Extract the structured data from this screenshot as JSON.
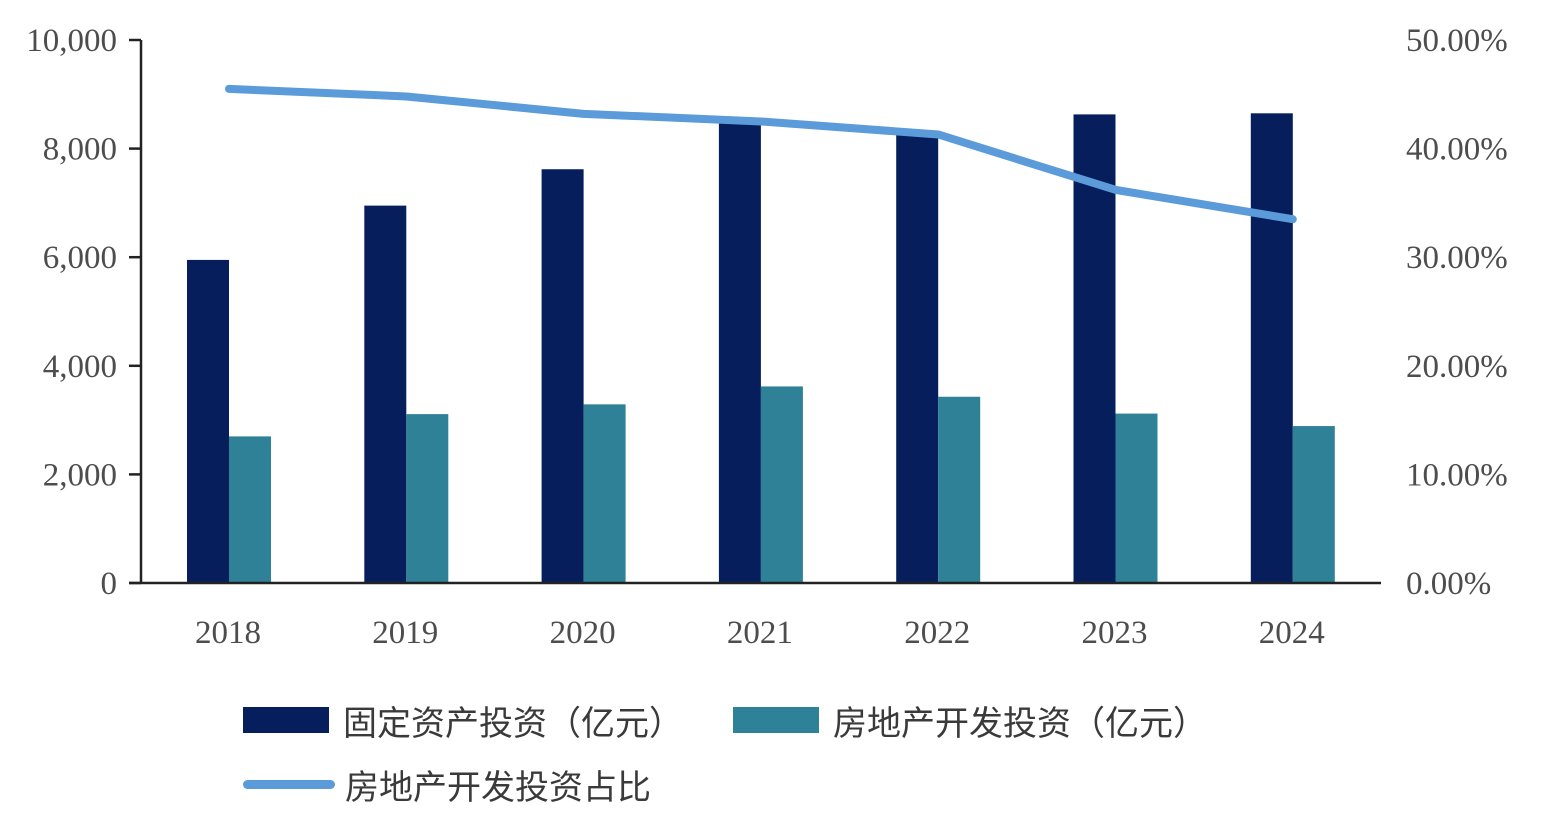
{
  "chart_data": {
    "type": "bar",
    "title": "",
    "categories": [
      "2018",
      "2019",
      "2020",
      "2021",
      "2022",
      "2023",
      "2024"
    ],
    "series": [
      {
        "name": "固定资产投资（亿元）",
        "type": "bar",
        "axis": "left",
        "color": "#061f5c",
        "values": [
          5950,
          6950,
          7620,
          8520,
          8260,
          8630,
          8650
        ]
      },
      {
        "name": "房地产开发投资（亿元）",
        "type": "bar",
        "axis": "left",
        "color": "#2e8197",
        "values": [
          2700,
          3110,
          3290,
          3620,
          3430,
          3120,
          2890
        ]
      },
      {
        "name": "房地产开发投资占比",
        "type": "line",
        "axis": "right",
        "color": "#5b9bd9",
        "values": [
          45.5,
          44.8,
          43.2,
          42.5,
          41.3,
          36.2,
          33.5
        ]
      }
    ],
    "left_axis": {
      "min": 0,
      "max": 10000,
      "ticks": [
        "0",
        "2,000",
        "4,000",
        "6,000",
        "8,000",
        "10,000"
      ]
    },
    "right_axis": {
      "min": 0,
      "max": 50,
      "ticks": [
        "0.00%",
        "10.00%",
        "20.00%",
        "30.00%",
        "40.00%",
        "50.00%"
      ]
    },
    "grid": false,
    "legend_position": "bottom"
  },
  "legend": {
    "item1": "固定资产投资（亿元）",
    "item2": "房地产开发投资（亿元）",
    "item3": "房地产开发投资占比"
  }
}
